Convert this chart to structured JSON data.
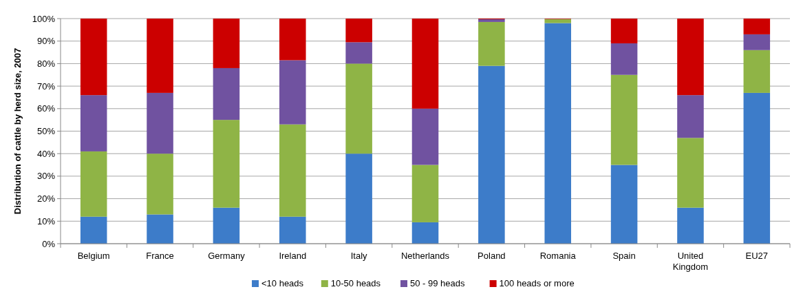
{
  "chart_data": {
    "type": "bar",
    "stacked": true,
    "ylabel": "Distribution of cattle by herd size, 2007",
    "categories": [
      "Belgium",
      "France",
      "Germany",
      "Ireland",
      "Italy",
      "Netherlands",
      "Poland",
      "Romania",
      "Spain",
      "United Kingdom",
      "EU27"
    ],
    "series": [
      {
        "name": "<10 heads",
        "color": "#3d7cc9",
        "values": [
          12,
          13,
          16,
          12,
          40,
          9.5,
          79,
          98,
          35,
          16,
          67
        ]
      },
      {
        "name": "10-50 heads",
        "color": "#8fb446",
        "values": [
          29,
          27,
          39,
          41,
          40,
          25.5,
          19.5,
          1.8,
          40,
          31,
          19
        ]
      },
      {
        "name": "50 - 99 heads",
        "color": "#7052a0",
        "values": [
          25,
          27,
          23,
          28.5,
          9.5,
          25,
          1.2,
          0,
          14,
          19,
          7
        ]
      },
      {
        "name": "100 heads or more",
        "color": "#cc0000",
        "values": [
          34,
          33,
          22,
          18.5,
          10.5,
          40,
          0.3,
          0.2,
          11,
          34,
          7
        ]
      }
    ],
    "ylim": [
      0,
      100
    ],
    "yticks": [
      {
        "value": 0,
        "label": "0%"
      },
      {
        "value": 10,
        "label": "10%"
      },
      {
        "value": 20,
        "label": "20%"
      },
      {
        "value": 30,
        "label": "30%"
      },
      {
        "value": 40,
        "label": "40%"
      },
      {
        "value": 50,
        "label": "50%"
      },
      {
        "value": 60,
        "label": "60%"
      },
      {
        "value": 70,
        "label": "70%"
      },
      {
        "value": 80,
        "label": "80%"
      },
      {
        "value": 90,
        "label": "90%"
      },
      {
        "value": 100,
        "label": "100%"
      }
    ],
    "grid": "y",
    "legend": "bottom"
  }
}
